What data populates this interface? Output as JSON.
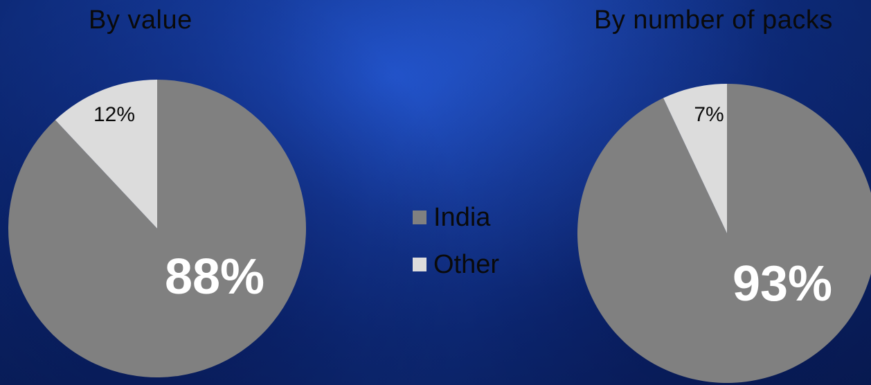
{
  "chart_data": [
    {
      "type": "pie",
      "title": "By value",
      "slices": [
        {
          "label": "India",
          "value": 88,
          "label_text": "88%",
          "color": "#808080"
        },
        {
          "label": "Other",
          "value": 12,
          "label_text": "12%",
          "color": "#dcdcdc"
        }
      ]
    },
    {
      "type": "pie",
      "title": "By number of packs",
      "slices": [
        {
          "label": "India",
          "value": 93,
          "label_text": "93%",
          "color": "#808080"
        },
        {
          "label": "Other",
          "value": 7,
          "label_text": "7%",
          "color": "#dcdcdc"
        }
      ]
    }
  ],
  "legend": {
    "placement": "center",
    "items": [
      {
        "label": "India",
        "color": "#808080"
      },
      {
        "label": "Other",
        "color": "#dcdcdc"
      }
    ]
  }
}
